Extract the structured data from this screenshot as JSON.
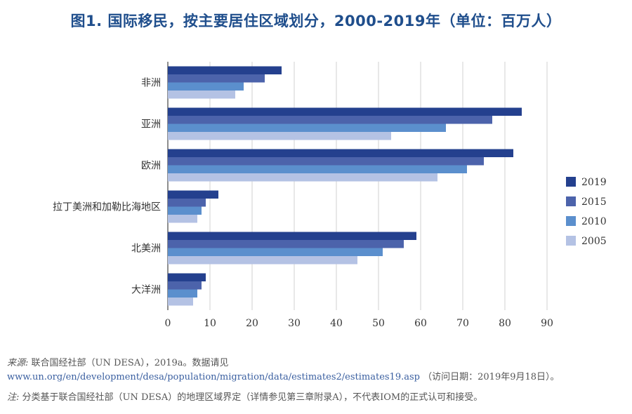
{
  "title": "图1. 国际移民，按主要居住区域划分，2000-2019年（单位：百万人）",
  "chart_data": {
    "type": "bar",
    "orientation": "horizontal",
    "categories": [
      "非洲",
      "亚洲",
      "欧洲",
      "拉丁美洲和加勒比海地区",
      "北美洲",
      "大洋洲"
    ],
    "series": [
      {
        "name": "2019",
        "color": "#24408e",
        "values": [
          27,
          84,
          82,
          12,
          59,
          9
        ]
      },
      {
        "name": "2015",
        "color": "#4c63ab",
        "values": [
          23,
          77,
          75,
          9,
          56,
          8
        ]
      },
      {
        "name": "2010",
        "color": "#5b8fcd",
        "values": [
          18,
          66,
          71,
          8,
          51,
          7
        ]
      },
      {
        "name": "2005",
        "color": "#b4c2e4",
        "values": [
          16,
          53,
          64,
          7,
          45,
          6
        ]
      }
    ],
    "xlim": [
      0,
      90
    ],
    "xticks": [
      0,
      10,
      20,
      30,
      40,
      50,
      60,
      70,
      80,
      90
    ],
    "legend": [
      "2019",
      "2015",
      "2010",
      "2005"
    ],
    "legend_position": "right",
    "grid": true
  },
  "source": {
    "lead": "来源:",
    "text": "联合国经社部（UN DESA），2019a。数据请见",
    "link": "www.un.org/en/development/desa/population/migration/data/estimates2/estimates19.asp",
    "tail": "（访问日期：2019年9月18日）。"
  },
  "note": {
    "lead": "注:",
    "text": "分类基于联合国经社部（UN DESA）的地理区域界定（详情参见第三章附录A），不代表IOM的正式认可和接受。"
  }
}
